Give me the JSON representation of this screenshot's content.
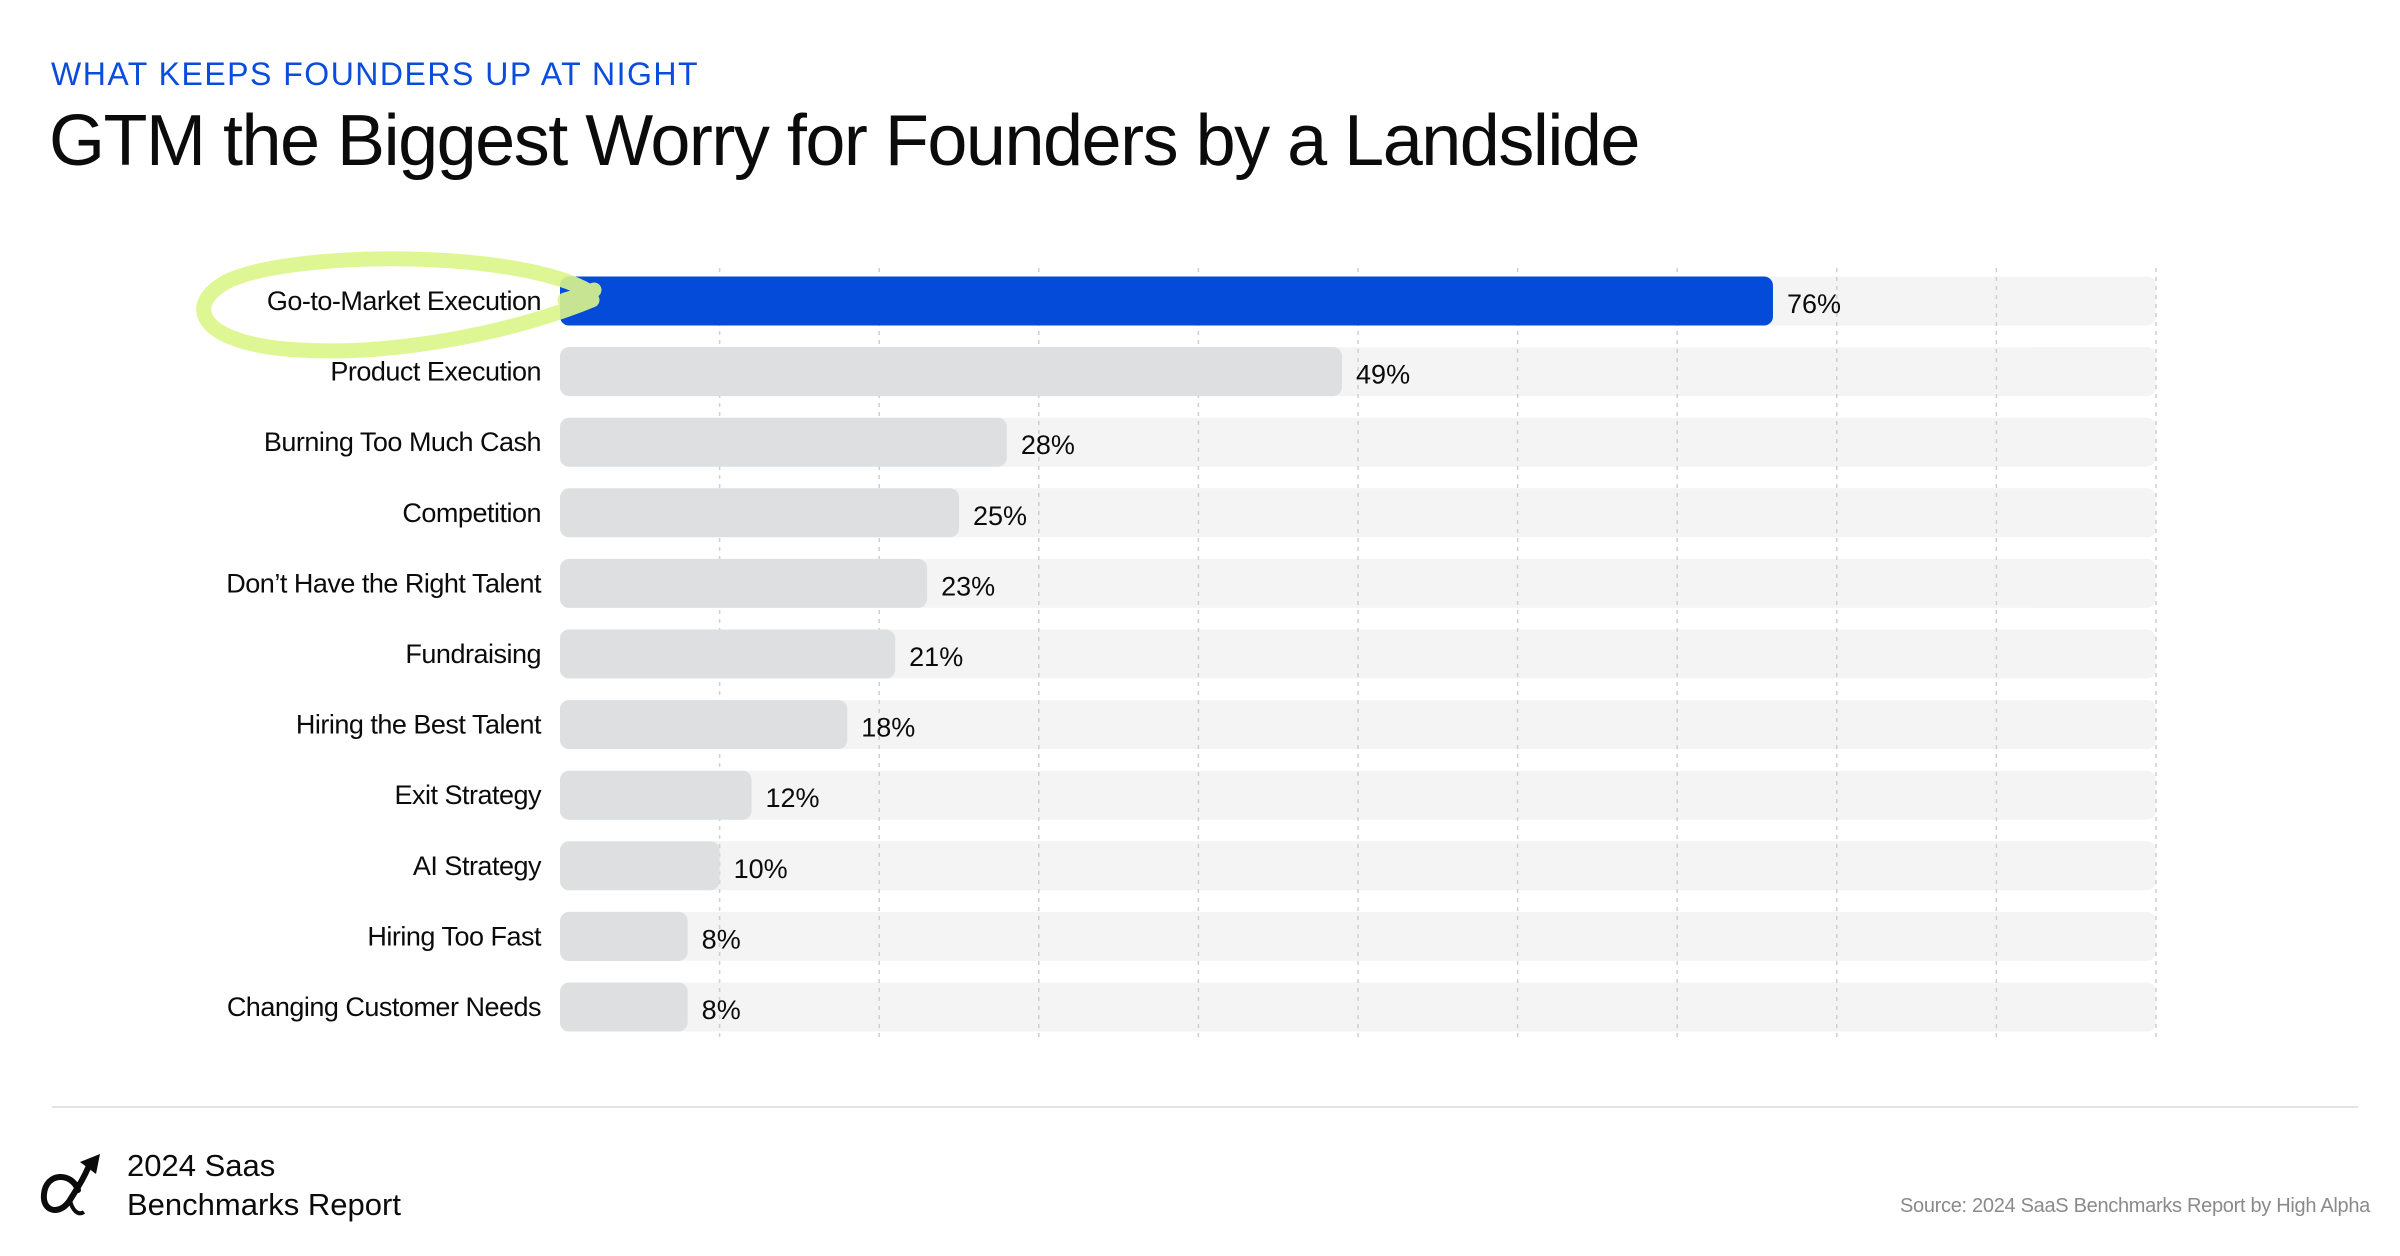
{
  "header": {
    "kicker": "WHAT KEEPS FOUNDERS UP AT NIGHT",
    "title": "GTM the Biggest Worry for Founders by a Landslide"
  },
  "chart_data": {
    "type": "bar",
    "orientation": "horizontal",
    "title": "GTM the Biggest Worry for Founders by a Landslide",
    "categories": [
      "Go-to-Market Execution",
      "Product Execution",
      "Burning Too Much Cash",
      "Competition",
      "Don’t Have the Right Talent",
      "Fundraising",
      "Hiring the Best Talent",
      "Exit Strategy",
      "AI Strategy",
      "Hiring Too Fast",
      "Changing Customer Needs"
    ],
    "values": [
      76,
      49,
      28,
      25,
      23,
      21,
      18,
      12,
      10,
      8,
      8
    ],
    "value_labels": [
      "76%",
      "49%",
      "28%",
      "25%",
      "23%",
      "21%",
      "18%",
      "12%",
      "10%",
      "8%",
      "8%"
    ],
    "highlighted": "Go-to-Market Execution",
    "xlim": [
      0,
      100
    ],
    "grid_step": 10,
    "grid": true,
    "colors": {
      "highlight": "#034bd8",
      "bar": "#dedfe1",
      "track": "#f4f4f4",
      "grid": "#cfcfcf",
      "circle": "#dcf58a"
    }
  },
  "footer": {
    "brand_line1": "2024 Saas",
    "brand_line2": "Benchmarks Report",
    "source": "Source: 2024 SaaS Benchmarks Report by High Alpha",
    "logo_icon": "alpha-arrow-logo"
  }
}
